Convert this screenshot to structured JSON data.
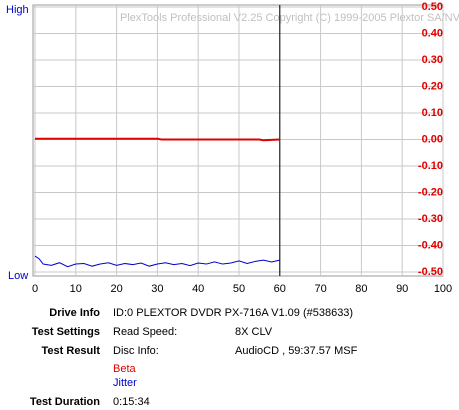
{
  "chart_data": {
    "type": "line",
    "watermark": "PlexTools Professional V2.25 Copyright (C) 1999-2005 Plextor SA/NV",
    "left_top_label": "High",
    "left_bottom_label": "Low",
    "xlim": [
      0,
      100
    ],
    "xticks": [
      0,
      10,
      20,
      30,
      40,
      50,
      60,
      70,
      80,
      90,
      100
    ],
    "ylim": [
      -0.5,
      0.5
    ],
    "yticks": [
      {
        "value": 0.5,
        "label": "0.50"
      },
      {
        "value": 0.4,
        "label": "0.40"
      },
      {
        "value": 0.3,
        "label": "0.30"
      },
      {
        "value": 0.2,
        "label": "0.20"
      },
      {
        "value": 0.1,
        "label": "0.10"
      },
      {
        "value": 0,
        "label": "0.00"
      },
      {
        "value": -0.1,
        "label": "-0.10"
      },
      {
        "value": -0.2,
        "label": "-0.20"
      },
      {
        "value": -0.3,
        "label": "-0.30"
      },
      {
        "value": -0.4,
        "label": "-0.40"
      },
      {
        "value": -0.5,
        "label": "-0.50"
      }
    ],
    "grid": true,
    "cursor_x": 60,
    "series": [
      {
        "name": "Beta",
        "color": "#e00000",
        "x": [
          0,
          30,
          31,
          55,
          56,
          60
        ],
        "values": [
          0.003,
          0.003,
          0.0,
          0.0,
          -0.003,
          0.0
        ]
      },
      {
        "name": "Jitter",
        "color": "#0000cc",
        "x": [
          0,
          1,
          2,
          4,
          6,
          8,
          10,
          12,
          14,
          16,
          18,
          20,
          22,
          24,
          26,
          28,
          30,
          32,
          34,
          36,
          38,
          40,
          42,
          44,
          46,
          48,
          50,
          52,
          54,
          56,
          58,
          60
        ],
        "values": [
          -0.44,
          -0.45,
          -0.47,
          -0.475,
          -0.465,
          -0.48,
          -0.47,
          -0.468,
          -0.478,
          -0.47,
          -0.465,
          -0.475,
          -0.468,
          -0.472,
          -0.466,
          -0.478,
          -0.47,
          -0.465,
          -0.472,
          -0.468,
          -0.476,
          -0.466,
          -0.47,
          -0.462,
          -0.47,
          -0.466,
          -0.458,
          -0.468,
          -0.46,
          -0.455,
          -0.462,
          -0.455
        ]
      }
    ]
  },
  "info": {
    "drive_label": "Drive Info",
    "drive_value": "ID:0 PLEXTOR DVDR PX-716A V1.09 (#538633)",
    "settings_label": "Test Settings",
    "settings_key": "Read Speed:",
    "settings_value": "8X CLV",
    "result_label": "Test Result",
    "result_key": "Disc Info:",
    "result_value": "AudioCD , 59:37.57 MSF",
    "duration_label": "Test Duration",
    "duration_value": "0:15:34"
  }
}
